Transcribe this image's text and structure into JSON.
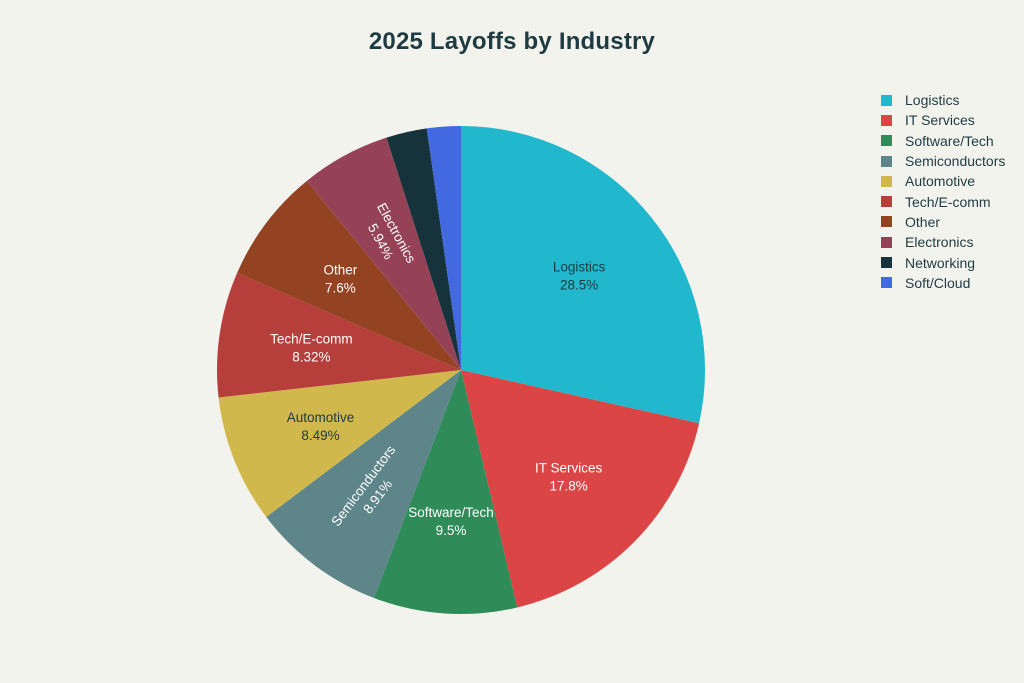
{
  "chart_data": {
    "type": "pie",
    "title": "2025 Layoffs by Industry",
    "legend_position": "top-right",
    "start_angle_deg": 0,
    "direction": "clockwise",
    "slices": [
      {
        "label": "Logistics",
        "value": 28.5,
        "display": "28.5%",
        "color": "#21b8ce",
        "text_color": "#1f3b42",
        "show_label": true
      },
      {
        "label": "IT Services",
        "value": 17.8,
        "display": "17.8%",
        "color": "#db4545",
        "text_color": "#ffffff",
        "show_label": true
      },
      {
        "label": "Software/Tech",
        "value": 9.5,
        "display": "9.5%",
        "color": "#2f8b57",
        "text_color": "#ffffff",
        "show_label": true
      },
      {
        "label": "Semiconductors",
        "value": 8.91,
        "display": "8.91%",
        "color": "#5e868a",
        "text_color": "#ffffff",
        "show_label": true,
        "rotate": true
      },
      {
        "label": "Automotive",
        "value": 8.49,
        "display": "8.49%",
        "color": "#d1b84c",
        "text_color": "#1f3b42",
        "show_label": true
      },
      {
        "label": "Tech/E-comm",
        "value": 8.32,
        "display": "8.32%",
        "color": "#b63e3b",
        "text_color": "#ffffff",
        "show_label": true
      },
      {
        "label": "Other",
        "value": 7.6,
        "display": "7.6%",
        "color": "#944322",
        "text_color": "#ffffff",
        "show_label": true
      },
      {
        "label": "Electronics",
        "value": 5.94,
        "display": "5.94%",
        "color": "#954257",
        "text_color": "#ffffff",
        "show_label": true,
        "rotate": true
      },
      {
        "label": "Networking",
        "value": 2.7,
        "display": "",
        "color": "#16333c",
        "text_color": "#ffffff",
        "show_label": false
      },
      {
        "label": "Soft/Cloud",
        "value": 2.24,
        "display": "",
        "color": "#4269e0",
        "text_color": "#ffffff",
        "show_label": false
      }
    ]
  }
}
